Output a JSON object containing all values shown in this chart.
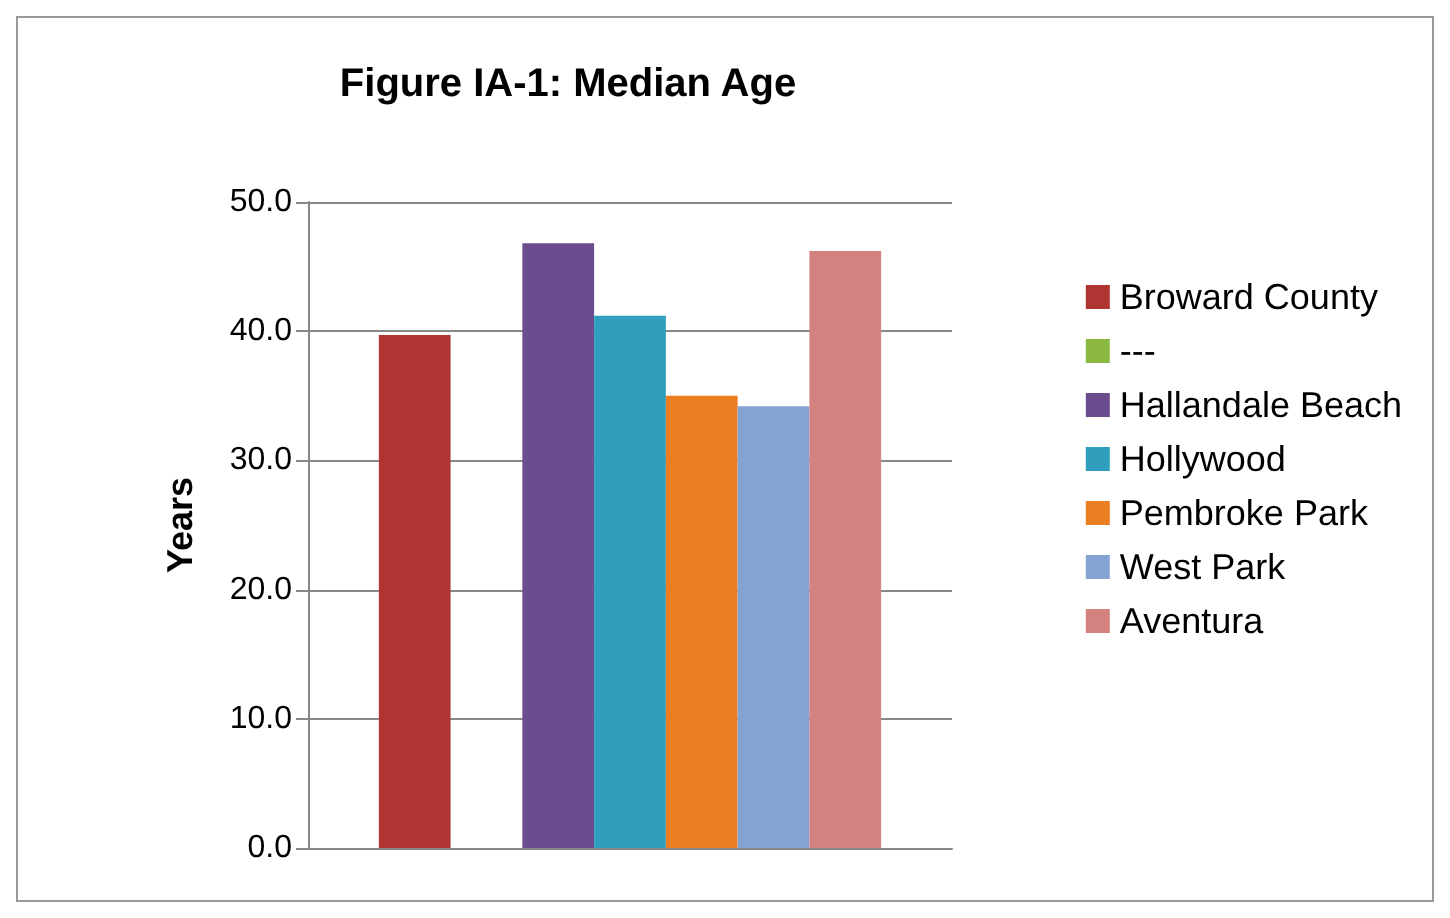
{
  "chart_data": {
    "type": "bar",
    "title": "Figure IA-1: Median Age",
    "ylabel": "Years",
    "categories": [
      null
    ],
    "series": [
      {
        "name": "Broward County",
        "color": "#b03432",
        "values": [
          39.7
        ]
      },
      {
        "name": "---",
        "color": "#8bb93f",
        "values": [
          null
        ]
      },
      {
        "name": "Hallandale Beach",
        "color": "#6b4c8e",
        "values": [
          46.8
        ]
      },
      {
        "name": "Hollywood",
        "color": "#2f9fbd",
        "values": [
          41.2
        ]
      },
      {
        "name": "Pembroke Park",
        "color": "#ec7e22",
        "values": [
          35.0
        ]
      },
      {
        "name": "West Park",
        "color": "#85a3d2",
        "values": [
          34.2
        ]
      },
      {
        "name": "Aventura",
        "color": "#d48280",
        "values": [
          46.2
        ]
      }
    ],
    "ylim": [
      0,
      50
    ],
    "yticks": [
      {
        "value": 0,
        "label": "0.0"
      },
      {
        "value": 10,
        "label": "10.0"
      },
      {
        "value": 20,
        "label": "20.0"
      },
      {
        "value": 30,
        "label": "30.0"
      },
      {
        "value": 40,
        "label": "40.0"
      },
      {
        "value": 50,
        "label": "50.0"
      }
    ],
    "grid": "y",
    "legend": "right"
  }
}
